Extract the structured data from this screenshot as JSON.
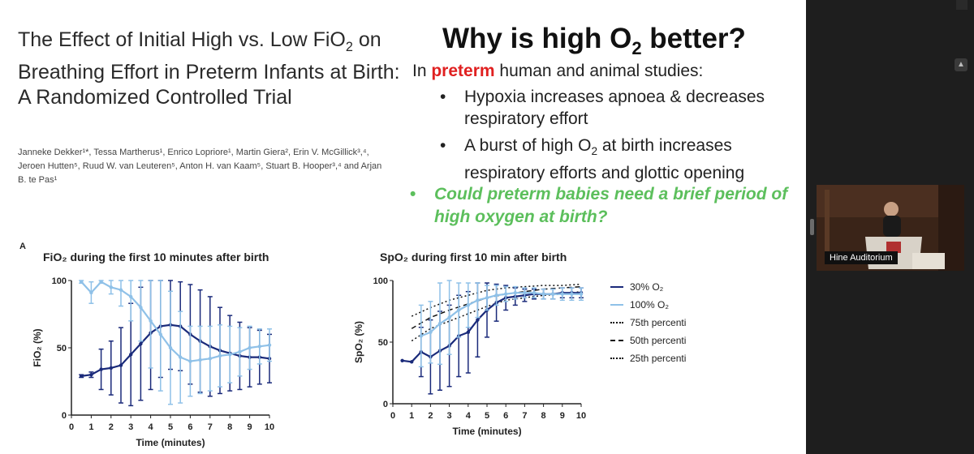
{
  "paper": {
    "title_line1": "The Effect of Initial High vs. Low FiO",
    "title_sub": "2",
    "title_rest": "on Breathing Effort in Preterm Infants at Birth: A Randomized Controlled Trial",
    "authors": "Janneke Dekker¹*, Tessa Martherus¹, Enrico Lopriore¹, Martin Giera², Erin V. McGillick³,⁴, Jeroen Hutten⁵, Ruud W. van Leuteren⁵, Anton H. van Kaam⁵, Stuart B. Hooper³,⁴ and Arjan B. te Pas¹"
  },
  "slide": {
    "title_pre": "Why is high O",
    "title_sub": "2",
    "title_post": " better?",
    "intro_pre": "In ",
    "intro_highlight": "preterm",
    "intro_post": " human and animal studies:",
    "bullet1": "Hypoxia increases apnoea & decreases respiratory effort",
    "bullet2_pre": "A burst of high O",
    "bullet2_sub": "2",
    "bullet2_post": " at birth increases respiratory efforts and glottic opening",
    "question": "Could preterm babies need a brief period of high oxygen at birth?",
    "bullet_glyph": "•",
    "accent": "#e02020",
    "question_color": "#5cbf5c"
  },
  "panel_label": "A",
  "fio_title": "FiO₂ during the first 10 minutes after birth",
  "spo_title": "SpO₂ during first 10 min after birth",
  "chart_data": [
    {
      "type": "line",
      "title": "FiO₂ during the first 10 minutes after birth",
      "xlabel": "Time (minutes)",
      "ylabel": "FiO₂ (%)",
      "xlim": [
        0,
        10
      ],
      "ylim": [
        0,
        100
      ],
      "xticks": [
        "0",
        "1",
        "2",
        "3",
        "4",
        "5",
        "6",
        "7",
        "8",
        "9",
        "10"
      ],
      "yticks": [
        "0",
        "50",
        "100"
      ],
      "series": [
        {
          "name": "30% O₂",
          "color": "#1a2a7a",
          "x": [
            0.5,
            1,
            1.5,
            2,
            2.5,
            3,
            3.5,
            4,
            4.5,
            5,
            5.5,
            6,
            6.5,
            7,
            7.5,
            8,
            8.5,
            9,
            9.5,
            10
          ],
          "values": [
            29,
            30,
            34,
            35,
            37,
            45,
            53,
            61,
            66,
            67,
            66,
            60,
            55,
            51,
            48,
            46,
            44,
            43,
            43,
            42
          ],
          "errors": [
            1,
            2,
            15,
            20,
            28,
            38,
            42,
            42,
            38,
            33,
            33,
            37,
            38,
            37,
            32,
            28,
            25,
            22,
            20,
            18
          ]
        },
        {
          "name": "100% O₂",
          "color": "#8fc1e8",
          "x": [
            0.5,
            1,
            1.5,
            2,
            2.5,
            3,
            3.5,
            4,
            4.5,
            5,
            5.5,
            6,
            6.5,
            7,
            7.5,
            8,
            8.5,
            9,
            9.5,
            10
          ],
          "values": [
            99,
            91,
            99,
            95,
            93,
            88,
            80,
            70,
            60,
            50,
            43,
            40,
            41,
            42,
            44,
            45,
            47,
            50,
            51,
            52
          ],
          "errors": [
            1,
            8,
            1,
            5,
            12,
            18,
            25,
            35,
            42,
            42,
            34,
            26,
            25,
            24,
            23,
            21,
            18,
            16,
            13,
            12
          ]
        }
      ]
    },
    {
      "type": "line",
      "title": "SpO₂ during first 10 min after birth",
      "xlabel": "Time (minutes)",
      "ylabel": "SpO₂ (%)",
      "xlim": [
        0,
        10
      ],
      "ylim": [
        0,
        100
      ],
      "xticks": [
        "0",
        "1",
        "2",
        "3",
        "4",
        "5",
        "6",
        "7",
        "8",
        "9",
        "10"
      ],
      "yticks": [
        "0",
        "50",
        "100"
      ],
      "series": [
        {
          "name": "30% O₂",
          "color": "#1a2a7a",
          "x": [
            0.5,
            1,
            1.5,
            2,
            2.5,
            3,
            3.5,
            4,
            4.5,
            5,
            5.5,
            6,
            6.5,
            7,
            7.5,
            8,
            8.5,
            9,
            9.5,
            10
          ],
          "values": [
            35,
            34,
            42,
            38,
            43,
            47,
            55,
            58,
            68,
            76,
            82,
            86,
            87,
            88,
            89,
            89,
            89,
            90,
            90,
            90
          ],
          "errors": [
            0,
            0,
            20,
            30,
            32,
            33,
            33,
            33,
            30,
            22,
            15,
            10,
            7,
            5,
            4,
            4,
            4,
            4,
            4,
            4
          ]
        },
        {
          "name": "100% O₂",
          "color": "#8fc1e8",
          "x": [
            1.5,
            2,
            2.5,
            3,
            3.5,
            4,
            4.5,
            5,
            5.5,
            6,
            6.5,
            7,
            7.5,
            8,
            8.5,
            9,
            9.5,
            10
          ],
          "values": [
            55,
            58,
            65,
            70,
            76,
            80,
            84,
            86,
            88,
            89,
            90,
            90,
            90,
            89,
            89,
            89,
            89,
            89
          ],
          "errors": [
            25,
            25,
            33,
            30,
            22,
            18,
            14,
            10,
            8,
            6,
            5,
            4,
            4,
            4,
            4,
            5,
            5,
            5
          ]
        },
        {
          "name": "75th percenti",
          "style": "dotted",
          "color": "#111",
          "x": [
            1,
            2,
            3,
            4,
            5,
            6,
            7,
            8,
            9,
            10
          ],
          "values": [
            71,
            78,
            84,
            88,
            92,
            94,
            95,
            96,
            96,
            97
          ]
        },
        {
          "name": "50th percenti",
          "style": "dashed",
          "color": "#111",
          "x": [
            1,
            2,
            3,
            4,
            5,
            6,
            7,
            8,
            9,
            10
          ],
          "values": [
            61,
            70,
            76,
            81,
            86,
            89,
            91,
            93,
            94,
            95
          ]
        },
        {
          "name": "25th percenti",
          "style": "dotted",
          "color": "#111",
          "x": [
            1,
            2,
            3,
            4,
            5,
            6,
            7,
            8,
            9,
            10
          ],
          "values": [
            51,
            61,
            67,
            73,
            79,
            84,
            86,
            88,
            89,
            91
          ]
        }
      ]
    }
  ],
  "legend": [
    {
      "label": "30% O₂",
      "color": "#1a2a7a",
      "style": "solid"
    },
    {
      "label": "100% O₂",
      "color": "#8fc1e8",
      "style": "solid"
    },
    {
      "label": "75th percenti",
      "color": "#111",
      "style": "dotted"
    },
    {
      "label": "50th percenti",
      "color": "#111",
      "style": "dashed"
    },
    {
      "label": "25th percenti",
      "color": "#111",
      "style": "dotted"
    }
  ],
  "video": {
    "label": "Hine Auditorium"
  }
}
